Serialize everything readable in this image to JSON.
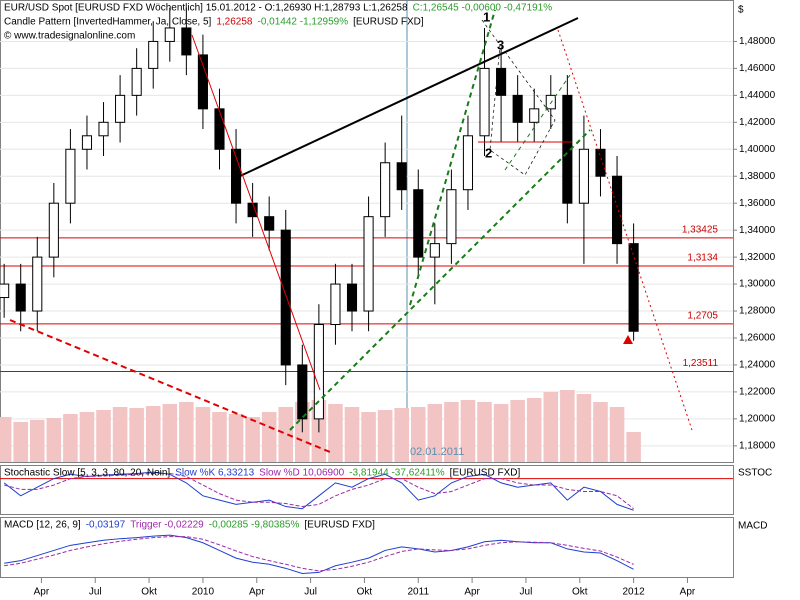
{
  "chart_data": {
    "type": "candlestick",
    "header": [
      [
        {
          "text": "EUR/USD Spot [EURUSD FXD  Wöchentlich]  15.01.2012 - O:1,26930 H:1,28793 L:1,26258",
          "color": "#000000"
        },
        {
          "text": "C:1,26545 -0,00600 -0,47191%",
          "color": "#2a9d2a"
        }
      ],
      [
        {
          "text": "Candle Pattern [InvertedHammer, Ja, Close, 5]",
          "color": "#000000"
        },
        {
          "text": "1,26258",
          "color": "#cc0000"
        },
        {
          "text": "-0,01442 -1,12959%",
          "color": "#2a9d2a"
        },
        {
          "text": "[EURUSD FXD]",
          "color": "#000000"
        }
      ],
      [
        {
          "text": "© www.tradesignalonline.com",
          "color": "#000000"
        }
      ]
    ],
    "y_axis_label": "$",
    "x": [
      1,
      5,
      9,
      13,
      17,
      21,
      25,
      29,
      33,
      37,
      41,
      45,
      49,
      53,
      57,
      61,
      65,
      69,
      73,
      77,
      81,
      85,
      89,
      93,
      97,
      101,
      105,
      109,
      113,
      117,
      121,
      125,
      129,
      133,
      137,
      141,
      145,
      149,
      153
    ],
    "open": [
      1.29,
      1.3,
      1.28,
      1.32,
      1.36,
      1.4,
      1.41,
      1.42,
      1.44,
      1.46,
      1.48,
      1.49,
      1.47,
      1.43,
      1.4,
      1.36,
      1.35,
      1.34,
      1.24,
      1.2,
      1.27,
      1.3,
      1.28,
      1.35,
      1.39,
      1.37,
      1.32,
      1.33,
      1.37,
      1.41,
      1.46,
      1.44,
      1.42,
      1.43,
      1.44,
      1.36,
      1.4,
      1.38,
      1.33
    ],
    "high": [
      1.315,
      1.315,
      1.335,
      1.375,
      1.415,
      1.425,
      1.435,
      1.455,
      1.475,
      1.495,
      1.505,
      1.505,
      1.485,
      1.445,
      1.415,
      1.375,
      1.365,
      1.355,
      1.255,
      1.285,
      1.315,
      1.315,
      1.365,
      1.405,
      1.425,
      1.385,
      1.345,
      1.385,
      1.425,
      1.49,
      1.475,
      1.455,
      1.445,
      1.455,
      1.455,
      1.425,
      1.415,
      1.395,
      1.345
    ],
    "low": [
      1.275,
      1.265,
      1.265,
      1.305,
      1.345,
      1.385,
      1.395,
      1.405,
      1.425,
      1.445,
      1.465,
      1.455,
      1.415,
      1.385,
      1.345,
      1.335,
      1.325,
      1.225,
      1.19,
      1.19,
      1.255,
      1.265,
      1.265,
      1.335,
      1.355,
      1.305,
      1.285,
      1.315,
      1.355,
      1.395,
      1.405,
      1.405,
      1.405,
      1.415,
      1.345,
      1.315,
      1.365,
      1.315,
      1.258
    ],
    "close": [
      1.3,
      1.28,
      1.32,
      1.36,
      1.4,
      1.41,
      1.42,
      1.44,
      1.46,
      1.48,
      1.49,
      1.47,
      1.43,
      1.4,
      1.36,
      1.35,
      1.34,
      1.24,
      1.2,
      1.27,
      1.3,
      1.28,
      1.35,
      1.39,
      1.37,
      1.32,
      1.33,
      1.37,
      1.41,
      1.46,
      1.44,
      1.42,
      1.43,
      1.44,
      1.36,
      1.4,
      1.38,
      1.33,
      1.265
    ],
    "volume": [
      45,
      40,
      42,
      44,
      48,
      50,
      52,
      55,
      54,
      56,
      58,
      60,
      55,
      50,
      48,
      45,
      50,
      55,
      60,
      62,
      58,
      55,
      50,
      52,
      54,
      55,
      58,
      60,
      62,
      60,
      58,
      62,
      64,
      70,
      72,
      68,
      60,
      55,
      30
    ],
    "xlim": [
      0,
      177
    ],
    "xticks": [
      {
        "value": 10,
        "label": "Apr"
      },
      {
        "value": 23,
        "label": "Jul"
      },
      {
        "value": 36,
        "label": "Okt"
      },
      {
        "value": 49,
        "label": "2010"
      },
      {
        "value": 62,
        "label": "Apr"
      },
      {
        "value": 75,
        "label": "Jul"
      },
      {
        "value": 88,
        "label": "Okt"
      },
      {
        "value": 101,
        "label": "2011"
      },
      {
        "value": 114,
        "label": "Apr"
      },
      {
        "value": 127,
        "label": "Jul"
      },
      {
        "value": 140,
        "label": "Okt"
      },
      {
        "value": 153,
        "label": "2012"
      },
      {
        "value": 166,
        "label": "Apr"
      }
    ],
    "ylim": [
      1.168,
      1.51
    ],
    "yticks": [
      {
        "value": 1.18,
        "label": "1,18000"
      },
      {
        "value": 1.2,
        "label": "1,20000"
      },
      {
        "value": 1.22,
        "label": "1,22000"
      },
      {
        "value": 1.24,
        "label": "1,24000"
      },
      {
        "value": 1.26,
        "label": "1,26000"
      },
      {
        "value": 1.28,
        "label": "1,28000"
      },
      {
        "value": 1.3,
        "label": "1,30000"
      },
      {
        "value": 1.32,
        "label": "1,32000"
      },
      {
        "value": 1.34,
        "label": "1,34000"
      },
      {
        "value": 1.36,
        "label": "1,36000"
      },
      {
        "value": 1.38,
        "label": "1,38000"
      },
      {
        "value": 1.4,
        "label": "1,40000"
      },
      {
        "value": 1.42,
        "label": "1,42000"
      },
      {
        "value": 1.44,
        "label": "1,44000"
      },
      {
        "value": 1.46,
        "label": "1,46000"
      },
      {
        "value": 1.48,
        "label": "1,48000"
      }
    ],
    "grid": true,
    "levels": [
      {
        "value": 1.33425,
        "label": "1,33425"
      },
      {
        "value": 1.3134,
        "label": "1,3134"
      },
      {
        "value": 1.2705,
        "label": "1,2705"
      },
      {
        "value": 1.23511,
        "label": "1,23511"
      }
    ],
    "annotations": [
      "1",
      "2",
      "3",
      "02.01.2011"
    ],
    "stochastic": {
      "header": [
        {
          "text": "Stochastic Slow [5, 3, 3, 80, 20, Nein]",
          "color": "#000000"
        },
        {
          "text": "Slow %K 6,33213",
          "color": "#1f3fcf"
        },
        {
          "text": "Slow %D 10,06900",
          "color": "#9b2aa8"
        },
        {
          "text": "-3,81944 -37,62411%",
          "color": "#2a9d2a"
        },
        {
          "text": "[EURUSD FXD]",
          "color": "#000000"
        }
      ],
      "label": "SSTOC",
      "ylim": [
        0,
        100
      ],
      "levels": [
        80
      ],
      "series": [
        {
          "name": "Slow %K",
          "color": "#1f3fcf",
          "values": [
            70,
            40,
            60,
            80,
            90,
            85,
            88,
            90,
            92,
            95,
            90,
            70,
            40,
            30,
            20,
            25,
            30,
            15,
            10,
            40,
            70,
            60,
            80,
            90,
            70,
            30,
            40,
            70,
            85,
            90,
            70,
            60,
            65,
            70,
            30,
            60,
            50,
            20,
            6.33213
          ]
        },
        {
          "name": "Slow %D",
          "color": "#9b2aa8",
          "values": [
            65,
            55,
            55,
            65,
            80,
            85,
            86,
            88,
            90,
            92,
            92,
            85,
            65,
            45,
            30,
            25,
            25,
            22,
            15,
            20,
            40,
            55,
            65,
            80,
            80,
            60,
            45,
            50,
            65,
            80,
            80,
            70,
            65,
            65,
            55,
            50,
            50,
            40,
            10.069
          ]
        }
      ]
    },
    "macd": {
      "header": [
        {
          "text": "MACD [12, 26, 9]",
          "color": "#000000"
        },
        {
          "text": "-0,03197",
          "color": "#1f3fcf"
        },
        {
          "text": "Trigger -0,02229",
          "color": "#9b2aa8"
        },
        {
          "text": "-0,00285 -9,80385%",
          "color": "#2a9d2a"
        },
        {
          "text": "[EURUSD FXD]",
          "color": "#000000"
        }
      ],
      "label": "MACD",
      "ylim": [
        -0.045,
        0.045
      ],
      "series": [
        {
          "name": "MACD",
          "color": "#1f3fcf",
          "values": [
            -0.02,
            -0.015,
            -0.005,
            0.005,
            0.015,
            0.02,
            0.025,
            0.028,
            0.03,
            0.033,
            0.035,
            0.03,
            0.02,
            0.005,
            -0.01,
            -0.018,
            -0.022,
            -0.03,
            -0.04,
            -0.038,
            -0.025,
            -0.018,
            -0.01,
            0.005,
            0.012,
            0.008,
            0.002,
            0.005,
            0.012,
            0.022,
            0.025,
            0.022,
            0.02,
            0.02,
            0.008,
            0.002,
            0.0,
            -0.015,
            -0.03197
          ]
        },
        {
          "name": "Trigger",
          "color": "#9b2aa8",
          "values": [
            -0.025,
            -0.02,
            -0.012,
            -0.004,
            0.005,
            0.012,
            0.018,
            0.023,
            0.027,
            0.03,
            0.032,
            0.032,
            0.027,
            0.016,
            0.004,
            -0.007,
            -0.015,
            -0.022,
            -0.03,
            -0.035,
            -0.032,
            -0.026,
            -0.018,
            -0.007,
            0.003,
            0.008,
            0.006,
            0.005,
            0.008,
            0.015,
            0.02,
            0.022,
            0.021,
            0.02,
            0.015,
            0.009,
            0.004,
            -0.008,
            -0.02229
          ]
        }
      ]
    }
  }
}
